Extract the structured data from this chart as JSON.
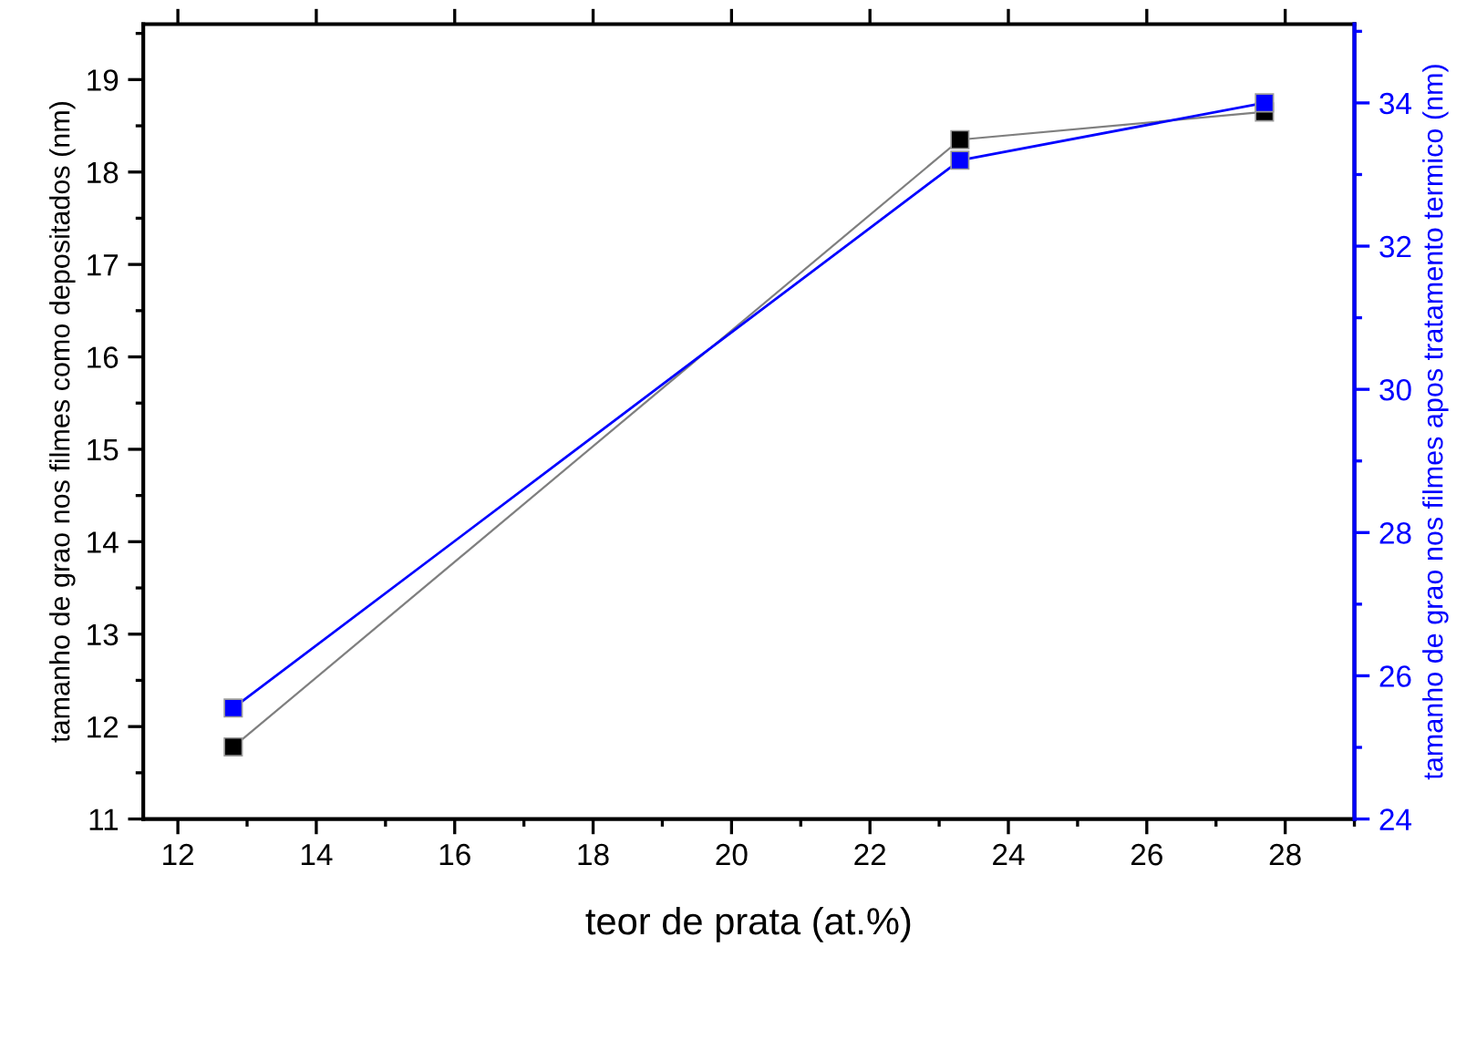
{
  "chart_data": {
    "type": "line",
    "xlabel": "teor de prata (at.%)",
    "ylabel": "tamanho de grao nos filmes como depositados (nm)",
    "y2label": "tamanho de grao nos filmes apos tratamento termico (nm)",
    "x": [
      12.8,
      23.3,
      27.7
    ],
    "series": [
      {
        "color": "#000000",
        "values": [
          11.78,
          18.35,
          18.65
        ]
      },
      {
        "color": "#0000ff",
        "axis": "y2",
        "values": [
          25.55,
          33.2,
          34.0
        ]
      }
    ],
    "xlim": [
      11.5,
      29
    ],
    "xticks": [
      12,
      14,
      16,
      18,
      20,
      22,
      24,
      26,
      28
    ],
    "ylim": [
      11,
      19.6
    ],
    "yticks": [
      11,
      12,
      13,
      14,
      15,
      16,
      17,
      18,
      19
    ],
    "y2lim": [
      24,
      35.1
    ],
    "y2ticks": [
      24,
      26,
      28,
      30,
      32,
      34
    ],
    "marker": "square",
    "line_style": "solid",
    "grid": false,
    "legend": false
  }
}
